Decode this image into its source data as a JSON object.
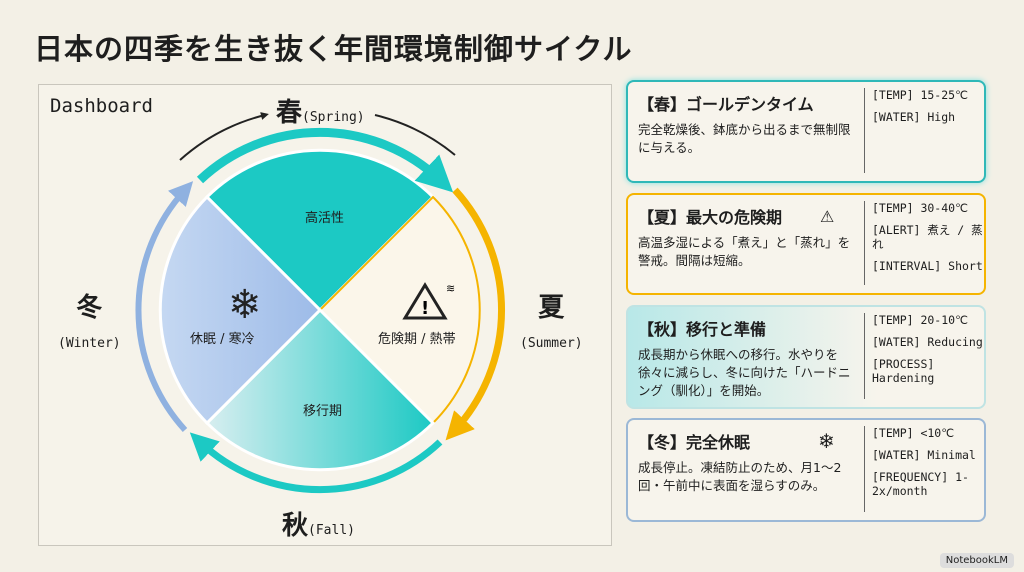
{
  "title": "日本の四季を生き抜く年間環境制御サイクル",
  "dashboard_label": "Dashboard",
  "colors": {
    "spring": "#1cc9c4",
    "summer": "#f5b400",
    "fall": "#7ed9d6",
    "winter": "#a9c4ec"
  },
  "wheel": {
    "spring": {
      "name": "春",
      "en": "(Spring)",
      "label": "高活性"
    },
    "summer": {
      "name": "夏",
      "en": "(Summer)",
      "label": "危険期 / 熱帯",
      "icon": "warning-heat-icon"
    },
    "fall": {
      "name": "秋",
      "en": "(Fall)",
      "label": "移行期"
    },
    "winter": {
      "name": "冬",
      "en": "(Winter)",
      "label": "休眠 / 寒冷",
      "icon": "snowflake-icon"
    }
  },
  "cards": [
    {
      "title": "【春】ゴールデンタイム",
      "body": "完全乾燥後、鉢底から出るまで無制限に与える。",
      "specs": [
        "[TEMP] 15-25℃",
        "[WATER] High"
      ]
    },
    {
      "title": "【夏】最大の危険期",
      "body": "高温多湿による「煮え」と「蒸れ」を警戒。間隔は短縮。",
      "specs": [
        "[TEMP] 30-40℃",
        "[ALERT] 煮え / 蒸れ",
        "[INTERVAL] Short"
      ]
    },
    {
      "title": "【秋】移行と準備",
      "body": "成長期から休眠への移行。水やりを徐々に減らし、冬に向けた「ハードニング（馴化）」を開始。",
      "specs": [
        "[TEMP] 20-10℃",
        "[WATER] Reducing",
        "[PROCESS] Hardening"
      ]
    },
    {
      "title": "【冬】完全休眠",
      "body": "成長停止。凍結防止のため、月1～2回・午前中に表面を湿らすのみ。",
      "specs": [
        "[TEMP] <10℃",
        "[WATER] Minimal",
        "[FREQUENCY] 1-2x/month"
      ]
    }
  ],
  "watermark": "NotebookLM"
}
